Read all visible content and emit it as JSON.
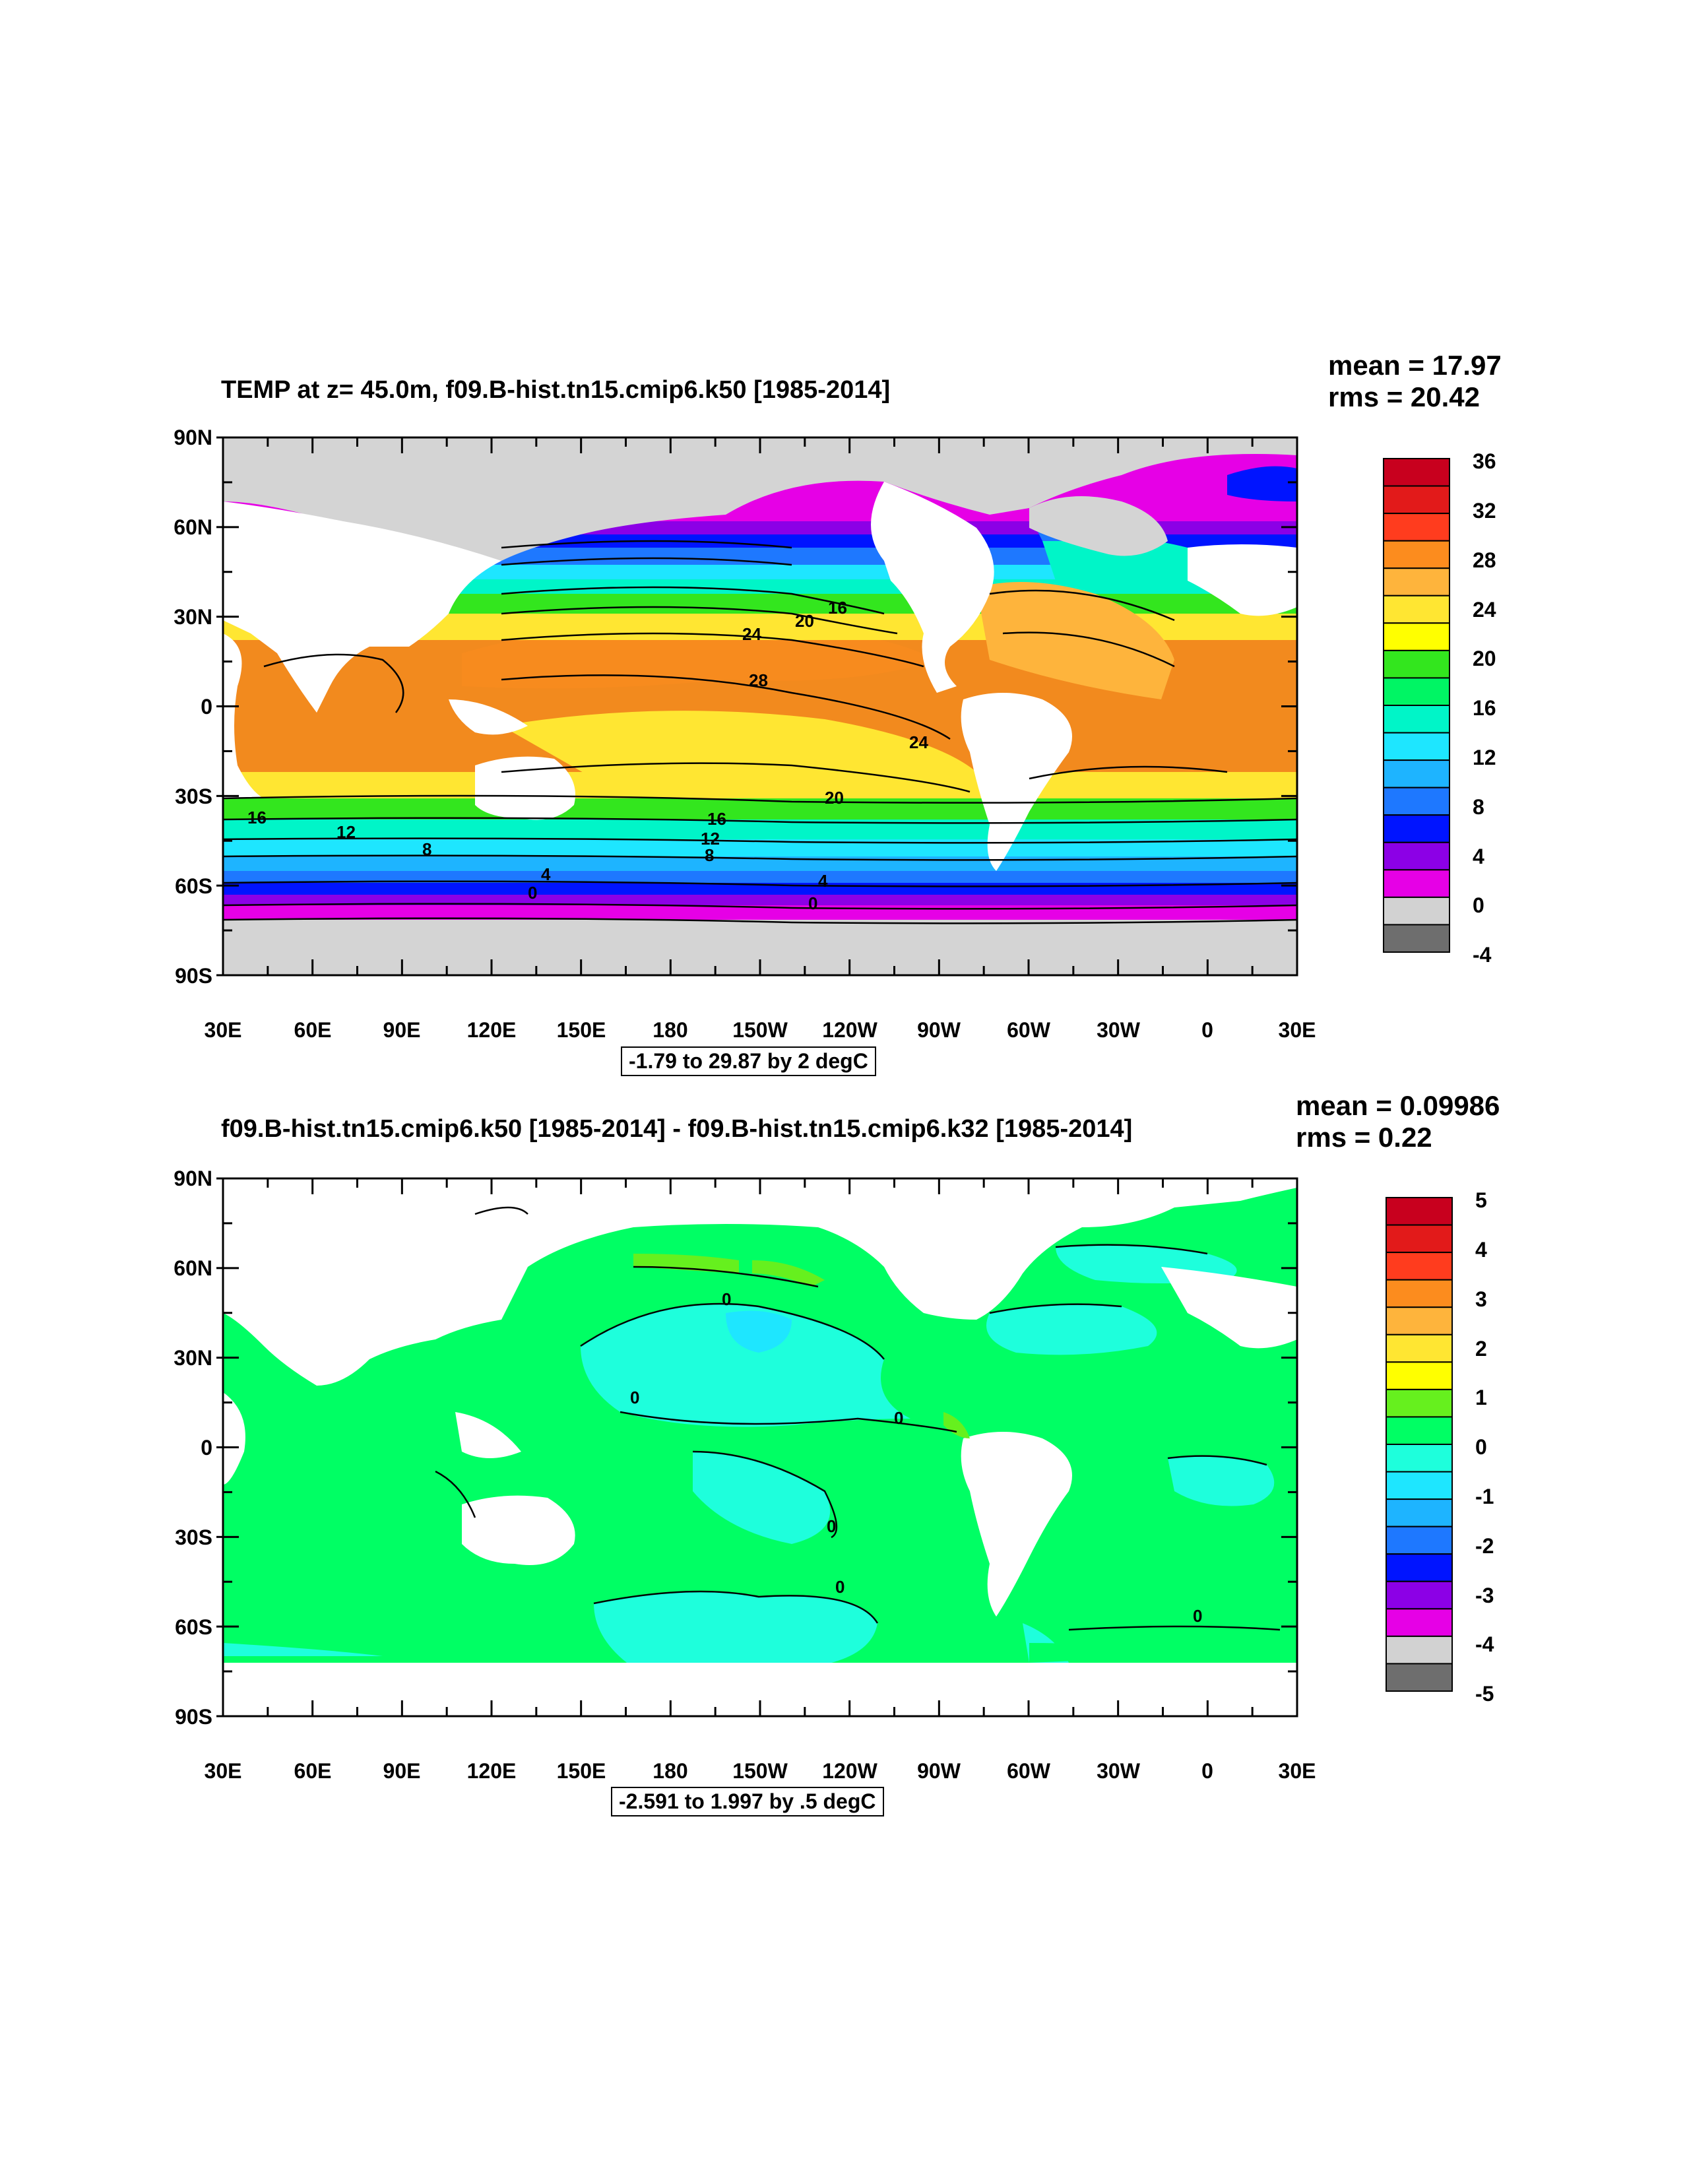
{
  "panels": [
    {
      "title": "TEMP at z=  45.0m, f09.B-hist.tn15.cmip6.k50 [1985-2014]",
      "mean_text": "mean = 17.97",
      "rms_text": "rms = 20.42",
      "range_text": "-1.79 to 29.87 by 2 degC",
      "colorbar_labels": [
        "36",
        "32",
        "28",
        "24",
        "20",
        "16",
        "12",
        "8",
        "4",
        "0",
        "-4"
      ],
      "contour_labels": [
        "16",
        "20",
        "24",
        "28",
        "24",
        "20",
        "16",
        "12",
        "8",
        "4",
        "0",
        "16",
        "12",
        "8",
        "4",
        "0"
      ]
    },
    {
      "title": "f09.B-hist.tn15.cmip6.k50 [1985-2014] - f09.B-hist.tn15.cmip6.k32 [1985-2014]",
      "mean_text": "mean = 0.09986",
      "rms_text": "rms = 0.22",
      "range_text": "-2.591 to 1.997 by .5 degC",
      "colorbar_labels": [
        "5",
        "4",
        "3",
        "2",
        "1",
        "0",
        "-1",
        "-2",
        "-3",
        "-4",
        "-5"
      ],
      "contour_labels": [
        "0",
        "0",
        "0",
        "0",
        "0",
        "0"
      ]
    }
  ],
  "axes": {
    "lat_ticks": [
      "90N",
      "60N",
      "30N",
      "0",
      "30S",
      "60S",
      "90S"
    ],
    "lon_ticks": [
      "30E",
      "60E",
      "90E",
      "120E",
      "150E",
      "180",
      "150W",
      "120W",
      "90W",
      "60W",
      "30W",
      "0",
      "30E"
    ]
  },
  "colors": {
    "land_top": "#d4d4d4",
    "land_bottom": "#ffffff",
    "colorbar_top": [
      "#c8001e",
      "#e21a1a",
      "#ff3c1e",
      "#fc8c1e",
      "#feb43c",
      "#ffe632",
      "#ffff00",
      "#33e61e",
      "#00f564",
      "#00f5c8",
      "#1ee6ff",
      "#1eb4ff",
      "#1e78ff",
      "#0014ff",
      "#8c00e6",
      "#e600e6",
      "#d2d2d2",
      "#6e6e6e"
    ],
    "colorbar_bottom": [
      "#c8001e",
      "#e21a1a",
      "#ff3c1e",
      "#fc8c1e",
      "#feb43c",
      "#ffe632",
      "#ffff00",
      "#66f01e",
      "#00ff64",
      "#1effdc",
      "#1ee6ff",
      "#1eb4ff",
      "#1e78ff",
      "#0014ff",
      "#8c00e6",
      "#e600e6",
      "#d2d2d2",
      "#6e6e6e"
    ]
  }
}
